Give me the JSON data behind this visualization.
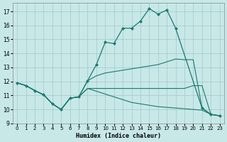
{
  "xlabel": "Humidex (Indice chaleur)",
  "background_color": "#c8e8e8",
  "grid_color": "#a0c8c8",
  "line_color": "#1a7a6e",
  "xlim": [
    -0.5,
    23.5
  ],
  "ylim": [
    9,
    17.6
  ],
  "yticks": [
    9,
    10,
    11,
    12,
    13,
    14,
    15,
    16,
    17
  ],
  "xticks": [
    0,
    1,
    2,
    3,
    4,
    5,
    6,
    7,
    8,
    9,
    10,
    11,
    12,
    13,
    14,
    15,
    16,
    17,
    18,
    19,
    20,
    21,
    22,
    23
  ],
  "curve_peak_x": [
    0,
    1,
    2,
    3,
    4,
    5,
    6,
    7,
    8,
    9,
    10,
    11,
    12,
    13,
    14,
    15,
    16,
    17,
    18,
    21,
    22,
    23
  ],
  "curve_peak_y": [
    11.9,
    11.7,
    11.35,
    11.05,
    10.4,
    10.0,
    10.8,
    10.9,
    12.05,
    13.2,
    14.8,
    14.7,
    15.8,
    15.8,
    16.3,
    17.2,
    16.8,
    17.1,
    15.8,
    10.1,
    9.65,
    9.55
  ],
  "curve_diag_x": [
    0,
    1,
    2,
    3,
    4,
    5,
    6,
    7,
    8,
    9,
    10,
    11,
    12,
    13,
    14,
    15,
    16,
    17,
    18,
    19,
    20,
    21,
    22,
    23
  ],
  "curve_diag_y": [
    11.9,
    11.7,
    11.35,
    11.05,
    10.4,
    10.0,
    10.8,
    10.9,
    12.05,
    12.4,
    12.6,
    12.7,
    12.8,
    12.9,
    13.0,
    13.1,
    13.2,
    13.4,
    13.6,
    13.55,
    13.55,
    10.1,
    9.65,
    9.55
  ],
  "curve_flat_x": [
    0,
    1,
    2,
    3,
    4,
    5,
    6,
    7,
    8,
    9,
    10,
    11,
    12,
    13,
    14,
    15,
    16,
    17,
    18,
    19,
    20,
    21,
    22,
    23
  ],
  "curve_flat_y": [
    11.9,
    11.7,
    11.35,
    11.05,
    10.4,
    10.0,
    10.8,
    10.9,
    11.5,
    11.5,
    11.5,
    11.5,
    11.5,
    11.5,
    11.5,
    11.5,
    11.5,
    11.5,
    11.5,
    11.5,
    11.7,
    11.7,
    9.65,
    9.55
  ],
  "curve_bot_x": [
    0,
    1,
    2,
    3,
    4,
    5,
    6,
    7,
    8,
    9,
    10,
    11,
    12,
    13,
    14,
    15,
    16,
    17,
    18,
    19,
    20,
    21,
    22,
    23
  ],
  "curve_bot_y": [
    11.9,
    11.7,
    11.35,
    11.05,
    10.4,
    10.0,
    10.8,
    10.9,
    11.5,
    11.3,
    11.1,
    10.9,
    10.7,
    10.5,
    10.4,
    10.3,
    10.2,
    10.15,
    10.1,
    10.05,
    10.0,
    9.95,
    9.65,
    9.55
  ]
}
